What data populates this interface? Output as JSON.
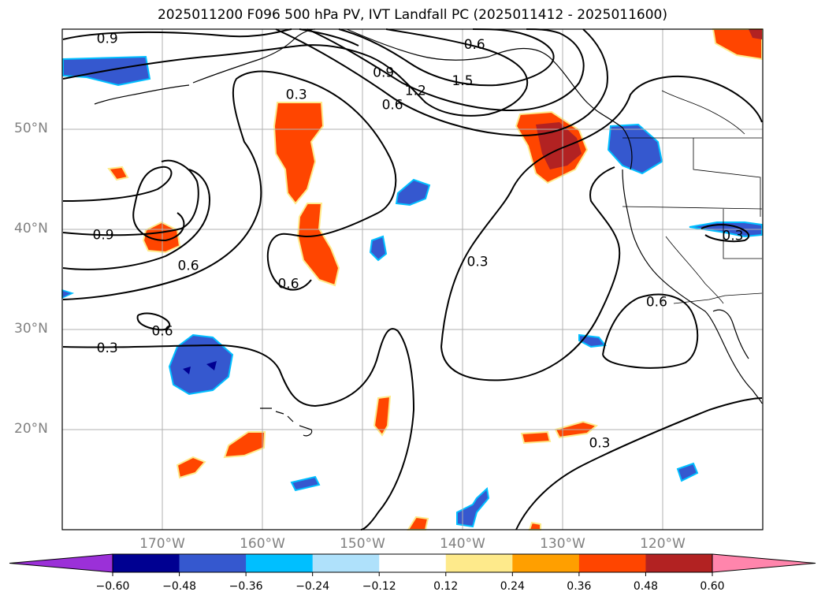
{
  "title": "2025011200 F096 500 hPa PV, IVT Landfall PC (2025011412 - 2025011600)",
  "map": {
    "extent": {
      "lon_min": -180,
      "lon_max": -110,
      "lat_min": 10,
      "lat_max": 60
    },
    "lat_ticks": [
      {
        "value": 50,
        "label": "50°N"
      },
      {
        "value": 40,
        "label": "40°N"
      },
      {
        "value": 30,
        "label": "30°N"
      },
      {
        "value": 20,
        "label": "20°N"
      }
    ],
    "lon_ticks": [
      {
        "value": -170,
        "label": "170°W"
      },
      {
        "value": -160,
        "label": "160°W"
      },
      {
        "value": -150,
        "label": "150°W"
      },
      {
        "value": -140,
        "label": "140°W"
      },
      {
        "value": -130,
        "label": "130°W"
      },
      {
        "value": -120,
        "label": "120°W"
      }
    ],
    "gridlines": true,
    "contour_labels": [
      {
        "text": "0.9",
        "lon": -175.5,
        "lat": 59.1
      },
      {
        "text": "0.6",
        "lon": -138.8,
        "lat": 58.5
      },
      {
        "text": "0.9",
        "lon": -147.9,
        "lat": 55.7
      },
      {
        "text": "1.2",
        "lon": -144.7,
        "lat": 53.9
      },
      {
        "text": "1.5",
        "lon": -140.0,
        "lat": 54.9
      },
      {
        "text": "0.3",
        "lon": -156.6,
        "lat": 53.5
      },
      {
        "text": "0.6",
        "lon": -147.0,
        "lat": 52.5
      },
      {
        "text": "0.9",
        "lon": -175.9,
        "lat": 39.5
      },
      {
        "text": "0.6",
        "lon": -167.4,
        "lat": 36.4
      },
      {
        "text": "0.6",
        "lon": -157.4,
        "lat": 34.6
      },
      {
        "text": "0.3",
        "lon": -138.5,
        "lat": 36.8
      },
      {
        "text": "0.6",
        "lon": -120.6,
        "lat": 32.8
      },
      {
        "text": "0.3",
        "lon": -113.0,
        "lat": 39.4
      },
      {
        "text": "0.6",
        "lon": -170.0,
        "lat": 29.9
      },
      {
        "text": "0.3",
        "lon": -175.5,
        "lat": 28.2
      },
      {
        "text": "0.3",
        "lon": -126.3,
        "lat": 18.7
      }
    ]
  },
  "colorbar": {
    "ticks": [
      "−0.60",
      "−0.48",
      "−0.36",
      "−0.24",
      "−0.12",
      "0.12",
      "0.24",
      "0.36",
      "0.48",
      "0.60"
    ],
    "colors": [
      "#9b30d8",
      "#000091",
      "#3558cf",
      "#00bfff",
      "#afe1fb",
      "#ffffff",
      "#feea8b",
      "#ff9f00",
      "#ff4500",
      "#b22222",
      "#ff85ac"
    ]
  }
}
